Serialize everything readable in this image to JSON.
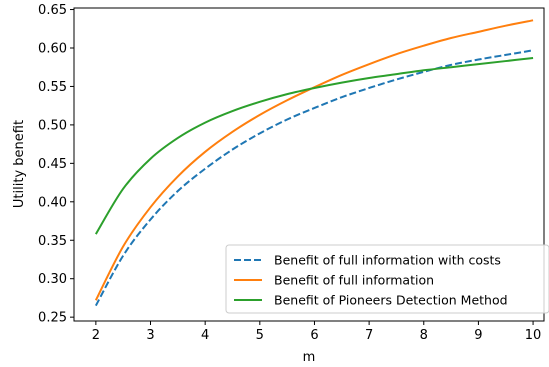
{
  "chart_data": {
    "type": "line",
    "title": "",
    "xlabel": "m",
    "ylabel": "Utility benefit",
    "xlim": [
      1.6,
      10.2
    ],
    "ylim": [
      0.245,
      0.652
    ],
    "xticks": [
      2,
      3,
      4,
      5,
      6,
      7,
      8,
      9,
      10
    ],
    "xtick_labels": [
      "2",
      "3",
      "4",
      "5",
      "6",
      "7",
      "8",
      "9",
      "10"
    ],
    "yticks": [
      0.25,
      0.3,
      0.35,
      0.4,
      0.45,
      0.5,
      0.55,
      0.6,
      0.65
    ],
    "ytick_labels": [
      "0.25",
      "0.30",
      "0.35",
      "0.40",
      "0.45",
      "0.50",
      "0.55",
      "0.60",
      "0.65"
    ],
    "grid": false,
    "legend_position": "lower-right",
    "x": [
      2,
      2.5,
      3,
      3.5,
      4,
      4.5,
      5,
      5.5,
      6,
      6.5,
      7,
      7.5,
      8,
      8.5,
      9,
      9.5,
      10
    ],
    "series": [
      {
        "name": "Benefit of full information with costs",
        "color": "#1f77b4",
        "style": "dashed",
        "values": [
          0.265,
          0.33,
          0.377,
          0.414,
          0.443,
          0.468,
          0.489,
          0.507,
          0.522,
          0.536,
          0.548,
          0.559,
          0.569,
          0.578,
          0.585,
          0.591,
          0.597
        ]
      },
      {
        "name": "Benefit of full information",
        "color": "#ff7f0e",
        "style": "solid",
        "values": [
          0.272,
          0.342,
          0.393,
          0.433,
          0.465,
          0.491,
          0.513,
          0.532,
          0.549,
          0.565,
          0.579,
          0.592,
          0.603,
          0.613,
          0.621,
          0.629,
          0.636
        ]
      },
      {
        "name": "Benefit of Pioneers Detection Method",
        "color": "#2ca02c",
        "style": "solid",
        "values": [
          0.358,
          0.417,
          0.456,
          0.483,
          0.503,
          0.518,
          0.53,
          0.54,
          0.548,
          0.555,
          0.561,
          0.566,
          0.571,
          0.575,
          0.579,
          0.583,
          0.587
        ]
      }
    ]
  }
}
